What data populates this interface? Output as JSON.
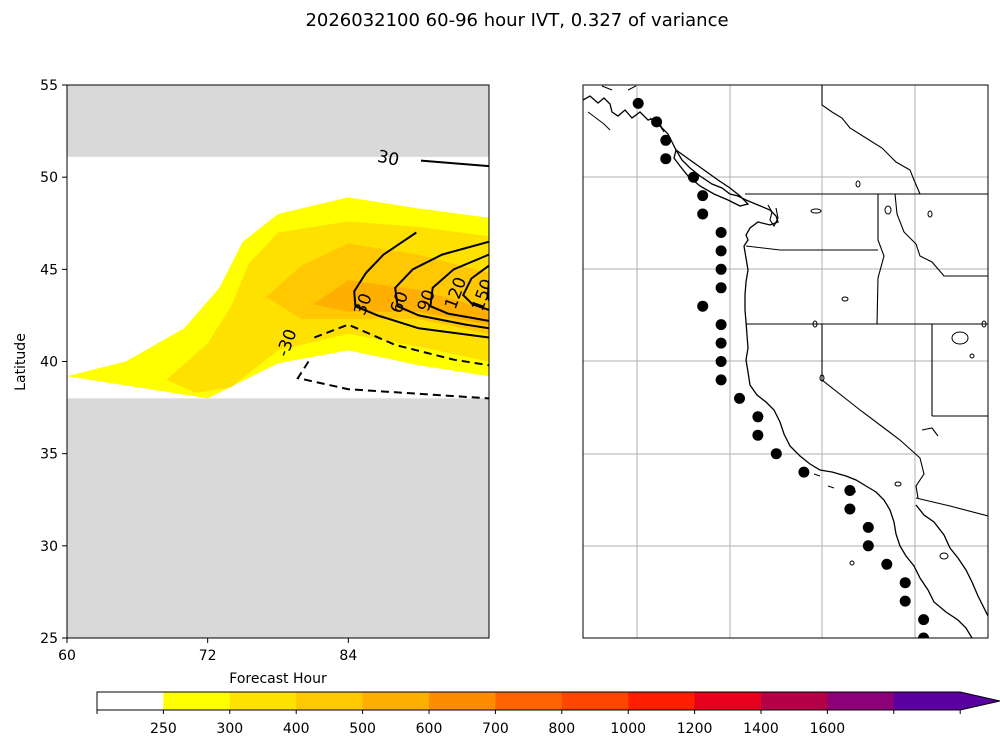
{
  "title": "2026032100 60-96 hour IVT, 0.327 of variance",
  "chart_data": [
    {
      "type": "heatmap",
      "name": "ivt-hovmoller",
      "xlabel": "Forecast Hour",
      "ylabel": "Latitude",
      "xlim": [
        60,
        96
      ],
      "ylim": [
        25,
        55
      ],
      "x_ticks": [
        60,
        72,
        84
      ],
      "x_tick_labels": [
        "60",
        "72",
        "84"
      ],
      "y_ticks": [
        25,
        30,
        35,
        40,
        45,
        50,
        55
      ],
      "y_tick_labels": [
        "25",
        "30",
        "35",
        "40",
        "45",
        "50",
        "55"
      ],
      "masked_regions": [
        {
          "name": "masked-north",
          "lat_range": [
            51.1,
            55
          ],
          "color": "#d9d9d9"
        },
        {
          "name": "masked-south",
          "lat_range": [
            25,
            38
          ],
          "color": "#d9d9d9"
        }
      ],
      "filled_regions": [
        {
          "level": 250,
          "color": "#ffff00",
          "points": [
            [
              60,
              39.2
            ],
            [
              65,
              40
            ],
            [
              70,
              41.8
            ],
            [
              73,
              44
            ],
            [
              75,
              46.5
            ],
            [
              78,
              48
            ],
            [
              84,
              48.9
            ],
            [
              90,
              48.3
            ],
            [
              96,
              47.8
            ],
            [
              96,
              39.2
            ],
            [
              90,
              39.8
            ],
            [
              84,
              40.6
            ],
            [
              78,
              39.9
            ],
            [
              72,
              38
            ]
          ]
        },
        {
          "level": 300,
          "color": "#ffe100",
          "points": [
            [
              68.5,
              39
            ],
            [
              72,
              41
            ],
            [
              74,
              43
            ],
            [
              75.5,
              45.3
            ],
            [
              78,
              47
            ],
            [
              84,
              47.6
            ],
            [
              90,
              47.3
            ],
            [
              96,
              46.8
            ],
            [
              96,
              40
            ],
            [
              90,
              40.8
            ],
            [
              84,
              41.5
            ],
            [
              78,
              40.6
            ],
            [
              74,
              38.6
            ],
            [
              71,
              38.3
            ]
          ]
        },
        {
          "level": 400,
          "color": "#ffc800",
          "points": [
            [
              77,
              43.5
            ],
            [
              80,
              45.2
            ],
            [
              84,
              46.4
            ],
            [
              90,
              45.8
            ],
            [
              96,
              44.8
            ],
            [
              96,
              41.5
            ],
            [
              90,
              42.3
            ],
            [
              84,
              42.3
            ],
            [
              80,
              42.3
            ]
          ]
        },
        {
          "level": 500,
          "color": "#ffaf00",
          "points": [
            [
              81,
              43.1
            ],
            [
              84,
              44.4
            ],
            [
              90,
              43.9
            ],
            [
              96,
              42.8
            ],
            [
              96,
              42
            ],
            [
              90,
              42.7
            ],
            [
              84,
              42.7
            ]
          ]
        }
      ],
      "contours": [
        {
          "label": "30",
          "style": "solid",
          "points": [
            [
              90.2,
              50.9
            ],
            [
              96,
              50.6
            ]
          ],
          "label_at": [
            87.4,
            51.0
          ]
        },
        {
          "label": "30",
          "style": "solid",
          "points": [
            [
              89.8,
              47
            ],
            [
              87,
              45.8
            ],
            [
              85.5,
              44.8
            ],
            [
              84.5,
              43.8
            ],
            [
              84.6,
              43
            ],
            [
              86.5,
              42.5
            ],
            [
              90,
              41.8
            ],
            [
              96,
              41.3
            ]
          ],
          "label_at": [
            85.3,
            43.1
          ]
        },
        {
          "label": "60",
          "style": "solid",
          "points": [
            [
              96,
              46.5
            ],
            [
              92,
              45.8
            ],
            [
              89.5,
              45
            ],
            [
              88,
              44
            ],
            [
              88.2,
              43
            ],
            [
              90,
              42.5
            ],
            [
              94,
              42
            ],
            [
              96,
              41.8
            ]
          ],
          "label_at": [
            88.4,
            43.2
          ]
        },
        {
          "label": "90",
          "style": "solid",
          "points": [
            [
              96,
              45.8
            ],
            [
              93,
              45
            ],
            [
              91.2,
              44
            ],
            [
              91,
              43
            ],
            [
              92.5,
              42.6
            ],
            [
              96,
              42.2
            ]
          ],
          "label_at": [
            90.7,
            43.3
          ]
        },
        {
          "label": "120",
          "style": "solid",
          "points": [
            [
              96,
              45.2
            ],
            [
              94.5,
              44.5
            ],
            [
              93.8,
              43.6
            ],
            [
              94.6,
              43.1
            ],
            [
              96,
              42.8
            ]
          ],
          "label_at": [
            93.2,
            43.7
          ]
        },
        {
          "label": "150",
          "style": "solid",
          "points": [
            [
              96,
              44.4
            ],
            [
              95.9,
              43.5
            ],
            [
              96,
              43.3
            ]
          ],
          "label_at": [
            95.5,
            43.6
          ]
        },
        {
          "label": "-30",
          "style": "dashed",
          "points": [
            [
              81.1,
              41.3
            ],
            [
              84,
              42
            ],
            [
              88,
              40.9
            ],
            [
              93,
              40.1
            ],
            [
              96,
              39.8
            ]
          ],
          "label_at": [
            78.8,
            41.0
          ]
        },
        {
          "label": "",
          "style": "dashed",
          "points": [
            [
              80.6,
              40
            ],
            [
              79.7,
              39.1
            ],
            [
              84,
              38.5
            ],
            [
              96,
              38
            ]
          ],
          "label_at": null
        }
      ]
    },
    {
      "type": "map",
      "name": "west-coast-map",
      "description_points_label": "ivt-points",
      "lon_range": [
        -131,
        -109
      ],
      "lat_range": [
        25,
        55
      ],
      "gridlines": true,
      "points": [
        [
          -128,
          54
        ],
        [
          -127,
          53
        ],
        [
          -126.5,
          52
        ],
        [
          -126.5,
          51
        ],
        [
          -125,
          50
        ],
        [
          -124.5,
          49
        ],
        [
          -124.5,
          48
        ],
        [
          -123.5,
          47
        ],
        [
          -123.5,
          46
        ],
        [
          -123.5,
          45
        ],
        [
          -123.5,
          44
        ],
        [
          -124.5,
          43
        ],
        [
          -123.5,
          42
        ],
        [
          -123.5,
          41
        ],
        [
          -123.5,
          40
        ],
        [
          -123.5,
          39
        ],
        [
          -122.5,
          38
        ],
        [
          -121.5,
          37
        ],
        [
          -121.5,
          36
        ],
        [
          -120.5,
          35
        ],
        [
          -119,
          34
        ],
        [
          -116.5,
          33
        ],
        [
          -116.5,
          32
        ],
        [
          -115.5,
          31
        ],
        [
          -115.5,
          30
        ],
        [
          -114.5,
          29
        ],
        [
          -113.5,
          28
        ],
        [
          -113.5,
          27
        ],
        [
          -112.5,
          26
        ],
        [
          -112.5,
          25
        ]
      ]
    }
  ],
  "colorbar": {
    "name": "ivt-colorbar",
    "levels": [
      0,
      250,
      300,
      400,
      500,
      600,
      700,
      800,
      1000,
      1200,
      1400,
      1600,
      1800
    ],
    "colors": [
      "#ffffff",
      "#ffff00",
      "#ffe100",
      "#ffc800",
      "#ffaf00",
      "#ff8c00",
      "#ff6400",
      "#ff4600",
      "#ff1e00",
      "#e6001e",
      "#b40046",
      "#8c0078",
      "#5a00a0"
    ],
    "extend_color": "#5a00a0",
    "tick_labels": [
      "250",
      "300",
      "400",
      "500",
      "600",
      "700",
      "800",
      "1000",
      "1200",
      "1400",
      "1600"
    ]
  }
}
